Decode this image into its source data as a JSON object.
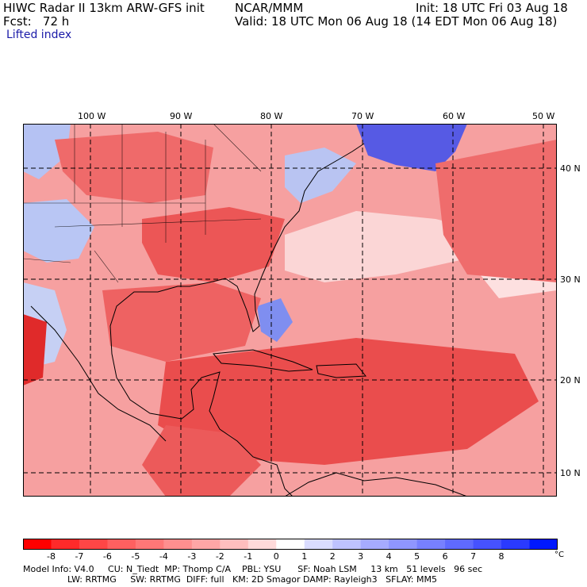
{
  "header": {
    "line1_left": "HIWC Radar II 13km ARW-GFS init",
    "line1_center": "NCAR/MMM",
    "line1_right": "Init: 18 UTC Fri 03 Aug 18",
    "line2_left": "Fcst:   72 h",
    "line2_right": "Valid: 18 UTC Mon 06 Aug 18 (14 EDT Mon 06 Aug 18)",
    "field": "Lifted index"
  },
  "map": {
    "longitude_labels": [
      "100 W",
      "90 W",
      "80 W",
      "70 W",
      "60 W",
      "50 W"
    ],
    "latitude_labels": [
      "40 N",
      "30 N",
      "20 N",
      "10 N"
    ],
    "colors": {
      "unstable_strong": "#e8303a",
      "unstable_moderate": "#f07070",
      "unstable_weak": "#f9b7b7",
      "neutral": "#ffffff",
      "stable_weak": "#c8d4f4",
      "stable_strong": "#2d3fe8"
    }
  },
  "colorbar": {
    "labels": [
      "-8",
      "-7",
      "-6",
      "-5",
      "-4",
      "-3",
      "-2",
      "-1",
      "0",
      "1",
      "2",
      "3",
      "4",
      "5",
      "6",
      "7",
      "8"
    ],
    "unit": "°C",
    "colors": [
      "#ff0000",
      "#ff2a2a",
      "#ff4646",
      "#ff6060",
      "#ff7777",
      "#ff8f8f",
      "#ffa6a6",
      "#ffbebe",
      "#ffdada",
      "#ffffff",
      "#dadcff",
      "#bec2ff",
      "#a6abff",
      "#8f96ff",
      "#7780ff",
      "#5f6aff",
      "#4652ff",
      "#2a3aff",
      "#0018ff"
    ]
  },
  "footer": {
    "line1": "Model Info: V4.0     CU: N_Tiedt  MP: Thomp C/A    PBL: YSU      SF: Noah LSM     13 km   51 levels   96 sec",
    "line2": "                LW: RRTMG     SW: RRTMG  DIFF: full   KM: 2D Smagor DAMP: Rayleigh3   SFLAY: MM5"
  }
}
